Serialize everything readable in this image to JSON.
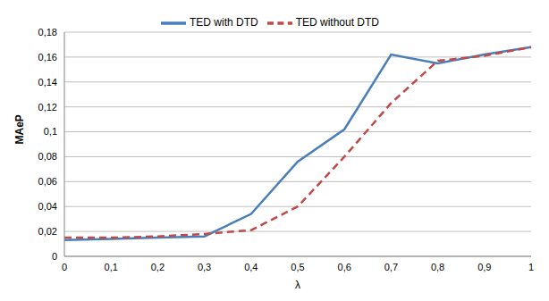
{
  "chart_data": {
    "type": "line",
    "x_label": "λ",
    "y_label": "MAeP",
    "categories": [
      "0",
      "0,1",
      "0,2",
      "0,3",
      "0,4",
      "0,5",
      "0,6",
      "0,7",
      "0,8",
      "0,9",
      "1"
    ],
    "series": [
      {
        "name": "TED with DTD",
        "color": "#4a7ebb",
        "line_style": "solid",
        "values": [
          0.013,
          0.014,
          0.015,
          0.016,
          0.034,
          0.076,
          0.102,
          0.162,
          0.155,
          0.162,
          0.168
        ]
      },
      {
        "name": "TED without DTD",
        "color": "#be4b48",
        "line_style": "dashed",
        "values": [
          0.015,
          0.015,
          0.016,
          0.018,
          0.021,
          0.04,
          0.08,
          0.123,
          0.157,
          0.161,
          0.168
        ]
      }
    ],
    "ylim": [
      0,
      0.18
    ],
    "yticks": [
      0,
      {
        "value": 0.02,
        "label": "0,02"
      },
      {
        "value": 0.04,
        "label": "0,04"
      },
      {
        "value": 0.06,
        "label": "0,06"
      },
      {
        "value": 0.08,
        "label": "0,08"
      },
      {
        "value": 0.1,
        "label": "0,1"
      },
      {
        "value": 0.12,
        "label": "0,12"
      },
      {
        "value": 0.14,
        "label": "0,14"
      },
      {
        "value": 0.16,
        "label": "0,16"
      },
      {
        "value": 0.18,
        "label": "0,18"
      }
    ],
    "grid": true,
    "legend": "top"
  }
}
